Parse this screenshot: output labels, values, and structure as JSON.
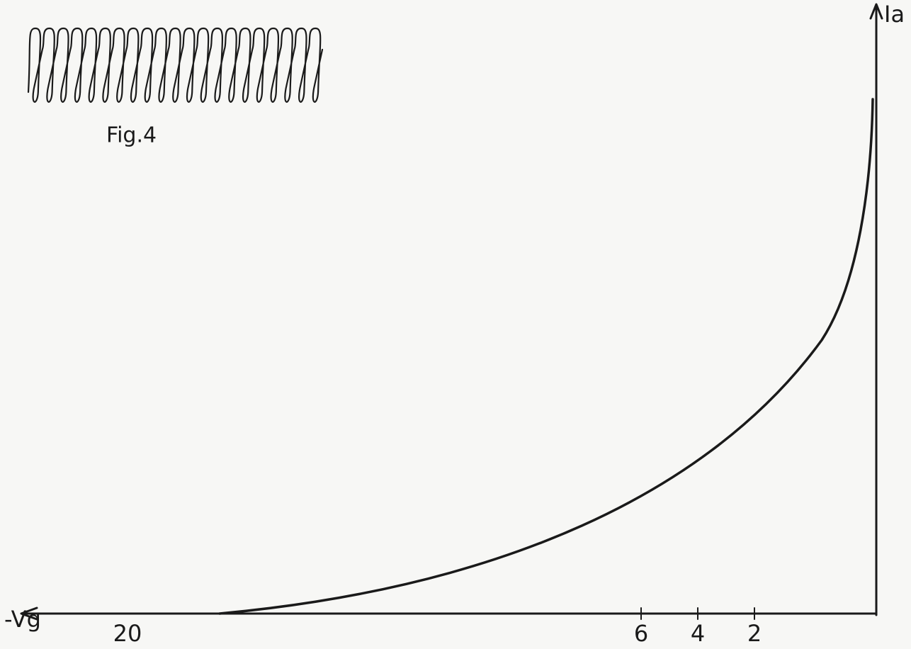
{
  "figure": {
    "label": "Fig.4"
  },
  "axes": {
    "y_label": "Ia",
    "x_label": "-Vg",
    "x_ticks": [
      "20",
      "6",
      "4",
      "2"
    ]
  }
}
